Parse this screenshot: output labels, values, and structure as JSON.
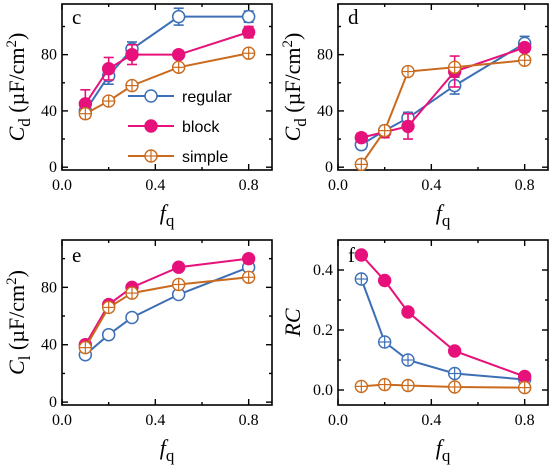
{
  "colors": {
    "regular": "#3d6fb6",
    "block": "#e6117a",
    "simple": "#c96a1e"
  },
  "legend": {
    "items": [
      {
        "key": "regular",
        "label": "regular"
      },
      {
        "key": "block",
        "label": "block"
      },
      {
        "key": "simple",
        "label": "simple"
      }
    ]
  },
  "chart_data": [
    {
      "panel": "c",
      "type": "line",
      "ylabel": {
        "sym": "C",
        "sub": "d",
        "unit": " (µF/cm",
        "sup": "2",
        "close": ")"
      },
      "xlabel": {
        "sym": "f",
        "sub": "q"
      },
      "xlim": [
        0,
        0.9
      ],
      "ylim": [
        -2,
        116
      ],
      "xticks": [
        {
          "v": 0.0,
          "label": "0.0"
        },
        {
          "v": 0.4,
          "label": "0.4"
        },
        {
          "v": 0.8,
          "label": "0.8"
        }
      ],
      "yticks": [
        {
          "v": 0,
          "label": "0"
        },
        {
          "v": 40,
          "label": "40"
        },
        {
          "v": 80,
          "label": "80"
        }
      ],
      "series": [
        {
          "name": "regular",
          "marker": "open",
          "x": [
            0.1,
            0.2,
            0.3,
            0.5,
            0.8
          ],
          "y": [
            40,
            65,
            84,
            107,
            107
          ],
          "err": [
            3,
            6,
            5,
            6,
            4
          ]
        },
        {
          "name": "block",
          "marker": "filled",
          "x": [
            0.1,
            0.2,
            0.3,
            0.5,
            0.8
          ],
          "y": [
            45,
            70,
            80,
            80,
            96
          ],
          "err": [
            10,
            8,
            7,
            0,
            4
          ]
        },
        {
          "name": "simple",
          "marker": "cross",
          "x": [
            0.1,
            0.2,
            0.3,
            0.5,
            0.8
          ],
          "y": [
            38,
            47,
            58,
            71,
            81
          ],
          "err": [
            0,
            0,
            0,
            0,
            0
          ]
        }
      ]
    },
    {
      "panel": "d",
      "type": "line",
      "ylabel": {
        "sym": "C",
        "sub": "d",
        "unit": " (µF/cm",
        "sup": "2",
        "close": ")"
      },
      "xlabel": {
        "sym": "f",
        "sub": "q"
      },
      "xlim": [
        0,
        0.9
      ],
      "ylim": [
        -2,
        116
      ],
      "xticks": [
        {
          "v": 0.0,
          "label": "0.0"
        },
        {
          "v": 0.4,
          "label": "0.4"
        },
        {
          "v": 0.8,
          "label": "0.8"
        }
      ],
      "yticks": [
        {
          "v": 0,
          "label": "0"
        },
        {
          "v": 40,
          "label": "40"
        },
        {
          "v": 80,
          "label": "80"
        }
      ],
      "series": [
        {
          "name": "regular",
          "marker": "open",
          "x": [
            0.1,
            0.2,
            0.3,
            0.5,
            0.8
          ],
          "y": [
            16,
            26,
            35,
            58,
            88
          ],
          "err": [
            3,
            3,
            4,
            6,
            5
          ]
        },
        {
          "name": "block",
          "marker": "filled",
          "x": [
            0.1,
            0.2,
            0.3,
            0.5,
            0.8
          ],
          "y": [
            21,
            25,
            29,
            68,
            85
          ],
          "err": [
            3,
            4,
            9,
            11,
            3
          ]
        },
        {
          "name": "simple",
          "marker": "cross",
          "x": [
            0.1,
            0.2,
            0.3,
            0.5,
            0.8
          ],
          "y": [
            2,
            26,
            68,
            71,
            76
          ],
          "err": [
            0,
            0,
            0,
            0,
            0
          ]
        }
      ]
    },
    {
      "panel": "e",
      "type": "line",
      "ylabel": {
        "sym": "C",
        "sub": "l",
        "unit": " (µF/cm",
        "sup": "2",
        "close": ")"
      },
      "xlabel": {
        "sym": "f",
        "sub": "q"
      },
      "xlim": [
        0,
        0.9
      ],
      "ylim": [
        -2,
        113
      ],
      "xticks": [
        {
          "v": 0.0,
          "label": "0.0"
        },
        {
          "v": 0.4,
          "label": "0.4"
        },
        {
          "v": 0.8,
          "label": "0.8"
        }
      ],
      "yticks": [
        {
          "v": 0,
          "label": "0"
        },
        {
          "v": 40,
          "label": "40"
        },
        {
          "v": 80,
          "label": "80"
        }
      ],
      "series": [
        {
          "name": "regular",
          "marker": "open",
          "x": [
            0.1,
            0.2,
            0.3,
            0.5,
            0.8
          ],
          "y": [
            33,
            47,
            59,
            75,
            94
          ],
          "err": [
            0,
            0,
            0,
            0,
            0
          ]
        },
        {
          "name": "block",
          "marker": "filled",
          "x": [
            0.1,
            0.2,
            0.3,
            0.5,
            0.8
          ],
          "y": [
            40,
            68,
            80,
            94,
            100
          ],
          "err": [
            0,
            0,
            0,
            0,
            0
          ]
        },
        {
          "name": "simple",
          "marker": "cross",
          "x": [
            0.1,
            0.2,
            0.3,
            0.5,
            0.8
          ],
          "y": [
            38,
            66,
            76,
            82,
            87
          ],
          "err": [
            0,
            0,
            0,
            0,
            0
          ]
        }
      ]
    },
    {
      "panel": "f",
      "type": "line",
      "ylabel": {
        "sym": "RC",
        "sub": "",
        "unit": "",
        "sup": "",
        "close": ""
      },
      "xlabel": {
        "sym": "f",
        "sub": "q"
      },
      "xlim": [
        0,
        0.9
      ],
      "ylim": [
        -0.05,
        0.5
      ],
      "xticks": [
        {
          "v": 0.0,
          "label": "0.0"
        },
        {
          "v": 0.4,
          "label": "0.4"
        },
        {
          "v": 0.8,
          "label": "0.8"
        }
      ],
      "yticks": [
        {
          "v": 0.0,
          "label": "0.0"
        },
        {
          "v": 0.2,
          "label": "0.2"
        },
        {
          "v": 0.4,
          "label": "0.4"
        }
      ],
      "series": [
        {
          "name": "regular",
          "marker": "cross",
          "x": [
            0.1,
            0.2,
            0.3,
            0.5,
            0.8
          ],
          "y": [
            0.37,
            0.16,
            0.1,
            0.055,
            0.035
          ],
          "err": [
            0,
            0,
            0,
            0,
            0
          ]
        },
        {
          "name": "block",
          "marker": "filled",
          "x": [
            0.1,
            0.2,
            0.3,
            0.5,
            0.8
          ],
          "y": [
            0.45,
            0.365,
            0.26,
            0.13,
            0.045
          ],
          "err": [
            0,
            0,
            0,
            0,
            0
          ]
        },
        {
          "name": "simple",
          "marker": "cross",
          "x": [
            0.1,
            0.2,
            0.3,
            0.5,
            0.8
          ],
          "y": [
            0.012,
            0.018,
            0.015,
            0.01,
            0.008
          ],
          "err": [
            0,
            0,
            0,
            0,
            0
          ]
        }
      ]
    }
  ]
}
